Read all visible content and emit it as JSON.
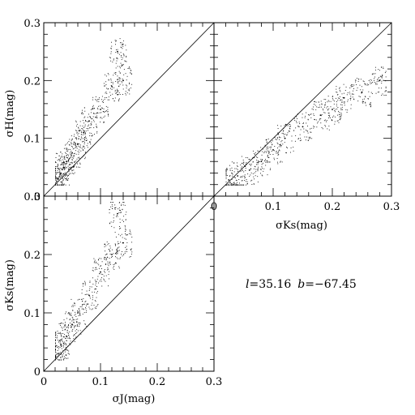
{
  "chart_data": [
    {
      "type": "scatter",
      "id": "panel-top-left",
      "ylabel": "σH(mag)",
      "xlabel": "",
      "xlim": [
        0,
        0.3
      ],
      "ylim": [
        0,
        0.3
      ],
      "x_ticks": [],
      "y_ticks": [
        "0",
        "0.1",
        "0.2",
        "0.3"
      ],
      "reference_line": "y = x",
      "series": [
        {
          "points": [
            [
              0.025,
              0.03
            ],
            [
              0.03,
              0.04
            ],
            [
              0.035,
              0.05
            ],
            [
              0.04,
              0.06
            ],
            [
              0.05,
              0.075
            ],
            [
              0.06,
              0.09
            ],
            [
              0.07,
              0.11
            ],
            [
              0.08,
              0.13
            ],
            [
              0.1,
              0.15
            ],
            [
              0.12,
              0.19
            ],
            [
              0.14,
              0.2
            ],
            [
              0.13,
              0.25
            ]
          ]
        }
      ]
    },
    {
      "type": "scatter",
      "id": "panel-top-right",
      "xlabel": "σKs(mag)",
      "ylabel": "",
      "xlim": [
        0,
        0.3
      ],
      "ylim": [
        0,
        0.3
      ],
      "x_ticks": [
        "0",
        "0.1",
        "0.2",
        "0.3"
      ],
      "y_ticks": [],
      "reference_line": "y = x",
      "series": [
        {
          "points": [
            [
              0.025,
              0.028
            ],
            [
              0.04,
              0.035
            ],
            [
              0.06,
              0.045
            ],
            [
              0.08,
              0.06
            ],
            [
              0.1,
              0.08
            ],
            [
              0.12,
              0.1
            ],
            [
              0.15,
              0.12
            ],
            [
              0.18,
              0.14
            ],
            [
              0.2,
              0.15
            ],
            [
              0.22,
              0.17
            ],
            [
              0.25,
              0.18
            ],
            [
              0.28,
              0.2
            ]
          ]
        }
      ]
    },
    {
      "type": "scatter",
      "id": "panel-bottom-left",
      "xlabel": "σJ(mag)",
      "ylabel": "σKs(mag)",
      "xlim": [
        0,
        0.3
      ],
      "ylim": [
        0,
        0.3
      ],
      "x_ticks": [
        "0",
        "0.1",
        "0.2",
        "0.3"
      ],
      "y_ticks": [
        "0",
        "0.1",
        "0.2",
        "0.3"
      ],
      "reference_line": "y = x",
      "series": [
        {
          "points": [
            [
              0.025,
              0.03
            ],
            [
              0.03,
              0.045
            ],
            [
              0.04,
              0.06
            ],
            [
              0.05,
              0.08
            ],
            [
              0.06,
              0.1
            ],
            [
              0.08,
              0.13
            ],
            [
              0.1,
              0.17
            ],
            [
              0.12,
              0.2
            ],
            [
              0.14,
              0.22
            ],
            [
              0.13,
              0.27
            ]
          ]
        }
      ]
    }
  ],
  "annotation": {
    "l_label": "l",
    "l_value": "=35.16",
    "b_label": "b",
    "b_value": "=−67.45"
  }
}
